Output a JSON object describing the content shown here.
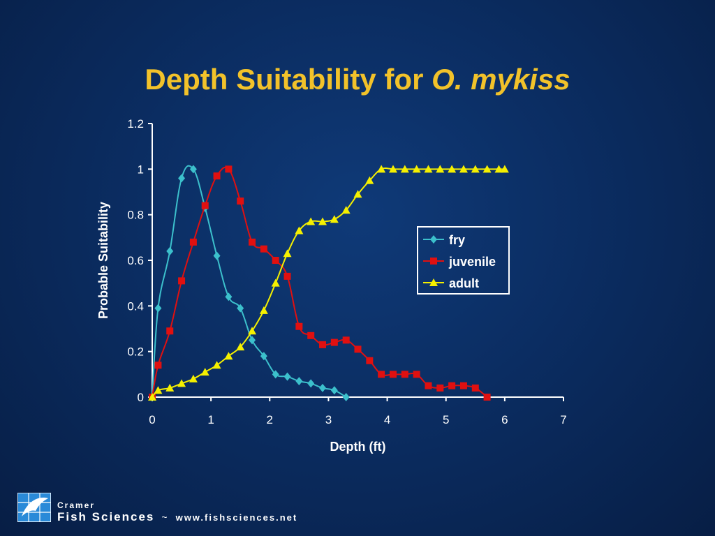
{
  "slide": {
    "title_main": "Depth Suitability for",
    "title_species": "O. mykiss"
  },
  "footer": {
    "company_line1": "Cramer",
    "company_line2": "Fish Sciences",
    "separator": "~",
    "url": "www.fishsciences.net",
    "logo_icon": "fish-logo-icon"
  },
  "colors": {
    "title": "#f2c22a",
    "fry": "#3cc0cc",
    "juvenile": "#e01010",
    "adult": "#f5f000",
    "axes": "#ffffff"
  },
  "chart_data": {
    "type": "line",
    "xlabel": "Depth (ft)",
    "ylabel": "Probable Suitability",
    "xlim": [
      0,
      7
    ],
    "ylim": [
      0,
      1.2
    ],
    "xticks": [
      0,
      1,
      2,
      3,
      4,
      5,
      6,
      7
    ],
    "xtick_labels": [
      "0",
      "1",
      "2",
      "3",
      "4",
      "5",
      "6",
      "7"
    ],
    "yticks": [
      0,
      0.2,
      0.4,
      0.6,
      0.8,
      1,
      1.2
    ],
    "ytick_labels": [
      "0",
      "0.2",
      "0.4",
      "0.6",
      "0.8",
      "1",
      "1.2"
    ],
    "legend_position": "right",
    "grid": false,
    "series": [
      {
        "name": "fry",
        "marker": "diamond",
        "color": "#3cc0cc",
        "x": [
          0,
          0.1,
          0.3,
          0.5,
          0.7,
          0.9,
          1.1,
          1.3,
          1.5,
          1.7,
          1.9,
          2.1,
          2.3,
          2.5,
          2.7,
          2.9,
          3.1,
          3.3
        ],
        "y": [
          0,
          0.39,
          0.64,
          0.96,
          1.0,
          0.83,
          0.62,
          0.44,
          0.39,
          0.25,
          0.18,
          0.1,
          0.09,
          0.07,
          0.06,
          0.04,
          0.03,
          0.0
        ]
      },
      {
        "name": "juvenile",
        "marker": "square",
        "color": "#e01010",
        "x": [
          0,
          0.1,
          0.3,
          0.5,
          0.7,
          0.9,
          1.1,
          1.3,
          1.5,
          1.7,
          1.9,
          2.1,
          2.3,
          2.5,
          2.7,
          2.9,
          3.1,
          3.3,
          3.5,
          3.7,
          3.9,
          4.1,
          4.3,
          4.5,
          4.7,
          4.9,
          5.1,
          5.3,
          5.5,
          5.7
        ],
        "y": [
          0,
          0.14,
          0.29,
          0.51,
          0.68,
          0.84,
          0.97,
          1.0,
          0.86,
          0.68,
          0.65,
          0.6,
          0.53,
          0.31,
          0.27,
          0.23,
          0.24,
          0.25,
          0.21,
          0.16,
          0.1,
          0.1,
          0.1,
          0.1,
          0.05,
          0.04,
          0.05,
          0.05,
          0.04,
          0.0
        ]
      },
      {
        "name": "adult",
        "marker": "triangle",
        "color": "#f5f000",
        "x": [
          0,
          0.1,
          0.3,
          0.5,
          0.7,
          0.9,
          1.1,
          1.3,
          1.5,
          1.7,
          1.9,
          2.1,
          2.3,
          2.5,
          2.7,
          2.9,
          3.1,
          3.3,
          3.5,
          3.7,
          3.9,
          4.1,
          4.3,
          4.5,
          4.7,
          4.9,
          5.1,
          5.3,
          5.5,
          5.7,
          5.9,
          6.0
        ],
        "y": [
          0,
          0.03,
          0.04,
          0.06,
          0.08,
          0.11,
          0.14,
          0.18,
          0.22,
          0.29,
          0.38,
          0.5,
          0.63,
          0.73,
          0.77,
          0.77,
          0.78,
          0.82,
          0.89,
          0.95,
          1.0,
          1.0,
          1.0,
          1.0,
          1.0,
          1.0,
          1.0,
          1.0,
          1.0,
          1.0,
          1.0,
          1.0
        ]
      }
    ]
  }
}
